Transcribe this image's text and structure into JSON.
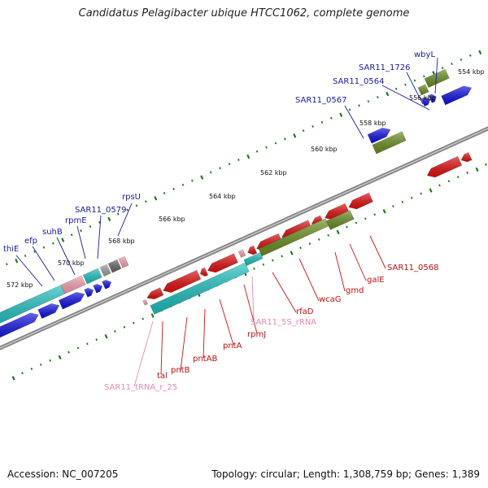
{
  "title": "Candidatus Pelagibacter ubique HTCC1062, complete genome",
  "footer": {
    "accession": "Accession: NC_007205",
    "topology": "Topology: circular; Length: 1,308,759 bp; Genes: 1,389"
  },
  "colors": {
    "forward_cds": "#1010e0",
    "reverse_cds": "#e01010",
    "gc_skew_forward": "#20c0c0",
    "gc_skew_reverse": "#6b8e23",
    "backbone": "#777777",
    "tick": "#1f7a1f",
    "trna": "#f4a0b0"
  },
  "kbp_ticks": [
    "554 kbp",
    "556 kbp",
    "558 kbp",
    "560 kbp",
    "562 kbp",
    "564 kbp",
    "566 kbp",
    "568 kbp",
    "570 kbp",
    "572 kbp"
  ],
  "top_genes": [
    "wbyL",
    "SAR11_1726",
    "SAR11_0564",
    "SAR11_0567",
    "rpsU",
    "SAR11_0579",
    "rpmE",
    "suhB",
    "efp",
    "thiE"
  ],
  "bottom_genes": [
    "SAR11_0568",
    "galE",
    "gmd",
    "wcaG",
    "rfaD",
    "SAR11_5S_rRNA",
    "rpmJ",
    "pntA",
    "pntAB",
    "pntB",
    "tal",
    "SAR11_tRNA_r_25"
  ],
  "rna_genes": [
    "SAR11_5S_rRNA",
    "SAR11_tRNA_r_25"
  ]
}
